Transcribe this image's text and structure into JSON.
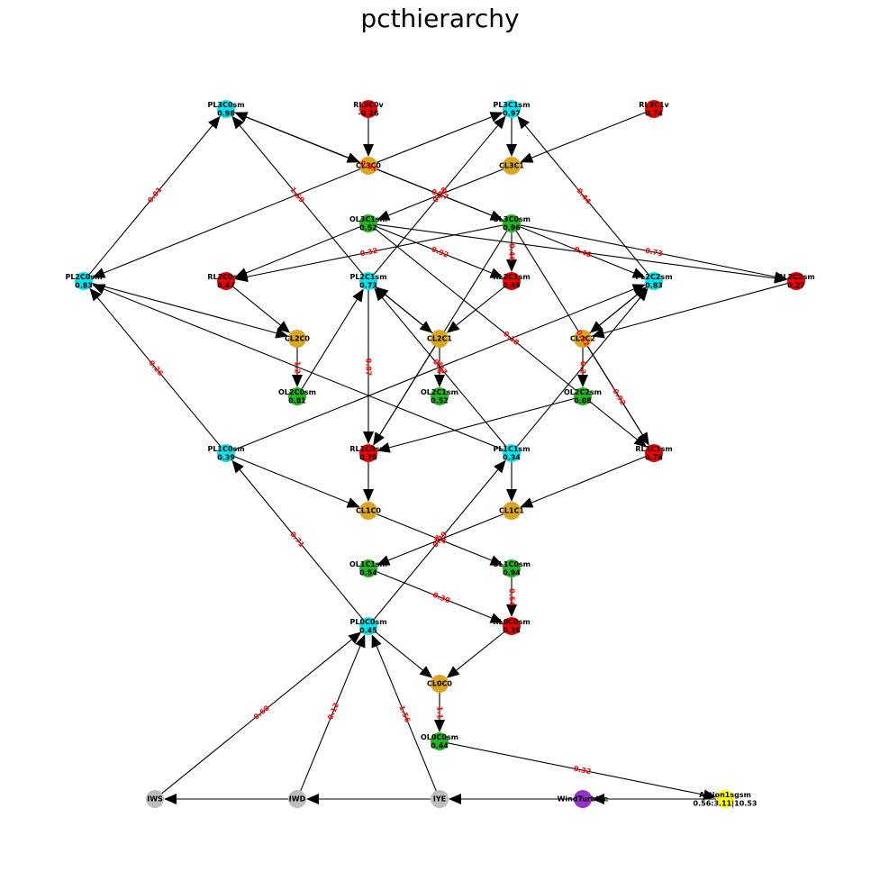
{
  "title": "pcthierarchy",
  "colors": {
    "cyan": "#00e5ee",
    "red": "#ee0000",
    "gold": "#daa520",
    "green": "#22b422",
    "gray": "#bdbdbd",
    "purple": "#9932cc",
    "yellow": "#ffff00",
    "edge": "#000000",
    "edge_label": "#ff0000"
  },
  "nodes": [
    {
      "id": "PL3C0sm",
      "lines": [
        "PL3C0sm",
        "0.98"
      ],
      "color": "cyan"
    },
    {
      "id": "RL3C0v",
      "lines": [
        "RL3C0v",
        "-0.26"
      ],
      "color": "red"
    },
    {
      "id": "PL3C1sm",
      "lines": [
        "PL3C1sm",
        "0.97"
      ],
      "color": "cyan"
    },
    {
      "id": "RL3C1v",
      "lines": [
        "RL3C1v",
        "0.74"
      ],
      "color": "red"
    },
    {
      "id": "CL3C0",
      "lines": [
        "CL3C0"
      ],
      "color": "gold"
    },
    {
      "id": "CL3C1",
      "lines": [
        "CL3C1"
      ],
      "color": "gold"
    },
    {
      "id": "OL3C1sm",
      "lines": [
        "OL3C1sm",
        "0.52"
      ],
      "color": "green"
    },
    {
      "id": "OL3C0sm",
      "lines": [
        "OL3C0sm",
        "0.96"
      ],
      "color": "green"
    },
    {
      "id": "PL2C0sm",
      "lines": [
        "PL2C0sm",
        "0.83"
      ],
      "color": "cyan"
    },
    {
      "id": "RL2C0sm",
      "lines": [
        "RL2C0sm",
        "0.47"
      ],
      "color": "red"
    },
    {
      "id": "PL2C1sm",
      "lines": [
        "PL2C1sm",
        "0.73"
      ],
      "color": "cyan"
    },
    {
      "id": "RL2C1sm",
      "lines": [
        "RL2C1sm",
        "0.49"
      ],
      "color": "red"
    },
    {
      "id": "PL2C2sm",
      "lines": [
        "PL2C2sm",
        "0.83"
      ],
      "color": "cyan"
    },
    {
      "id": "RL2C2sm",
      "lines": [
        "RL2C2sm",
        "0.27"
      ],
      "color": "red"
    },
    {
      "id": "CL2C0",
      "lines": [
        "CL2C0"
      ],
      "color": "gold"
    },
    {
      "id": "CL2C1",
      "lines": [
        "CL2C1"
      ],
      "color": "gold"
    },
    {
      "id": "CL2C2",
      "lines": [
        "CL2C2"
      ],
      "color": "gold"
    },
    {
      "id": "OL2C0sm",
      "lines": [
        "OL2C0sm",
        "0.81"
      ],
      "color": "green"
    },
    {
      "id": "OL2C1sm",
      "lines": [
        "OL2C1sm",
        "0.52"
      ],
      "color": "green"
    },
    {
      "id": "OL2C2sm",
      "lines": [
        "OL2C2sm",
        "0.08"
      ],
      "color": "green"
    },
    {
      "id": "PL1C0sm",
      "lines": [
        "PL1C0sm",
        "0.39"
      ],
      "color": "cyan"
    },
    {
      "id": "RL1C0sm",
      "lines": [
        "RL1C0sm",
        "0.70"
      ],
      "color": "red"
    },
    {
      "id": "PL1C1sm",
      "lines": [
        "PL1C1sm",
        "0.34"
      ],
      "color": "cyan"
    },
    {
      "id": "RL1C1sm",
      "lines": [
        "RL1C1sm",
        "0.78"
      ],
      "color": "red"
    },
    {
      "id": "CL1C0",
      "lines": [
        "CL1C0"
      ],
      "color": "gold"
    },
    {
      "id": "CL1C1",
      "lines": [
        "CL1C1"
      ],
      "color": "gold"
    },
    {
      "id": "OL1C1sm",
      "lines": [
        "OL1C1sm",
        "0.54"
      ],
      "color": "green"
    },
    {
      "id": "OL1C0sm",
      "lines": [
        "OL1C0sm",
        "0.94"
      ],
      "color": "green"
    },
    {
      "id": "PL0C0sm",
      "lines": [
        "PL0C0sm",
        "0.45"
      ],
      "color": "cyan"
    },
    {
      "id": "RL0C0sm",
      "lines": [
        "RL0C0sm",
        "0.38"
      ],
      "color": "red"
    },
    {
      "id": "CL0C0",
      "lines": [
        "CL0C0"
      ],
      "color": "gold"
    },
    {
      "id": "OL0C0sm",
      "lines": [
        "OL0C0sm",
        "0.44"
      ],
      "color": "green"
    },
    {
      "id": "IWS",
      "lines": [
        "IWS"
      ],
      "color": "gray"
    },
    {
      "id": "IWD",
      "lines": [
        "IWD"
      ],
      "color": "gray"
    },
    {
      "id": "IYE",
      "lines": [
        "IYE"
      ],
      "color": "gray"
    },
    {
      "id": "WindTurbine",
      "lines": [
        "WindTurbine"
      ],
      "color": "purple"
    },
    {
      "id": "Action1sgsm",
      "lines": [
        "Action1sgsm",
        "0.56:3.11|10.53"
      ],
      "color": "yellow"
    }
  ],
  "edges": [
    {
      "from": "RL3C0v",
      "to": "CL3C0",
      "label": ""
    },
    {
      "from": "PL3C0sm",
      "to": "CL3C0",
      "label": ""
    },
    {
      "from": "CL3C0",
      "to": "PL3C0sm",
      "label": ""
    },
    {
      "from": "PL3C1sm",
      "to": "CL3C1",
      "label": ""
    },
    {
      "from": "RL3C1v",
      "to": "CL3C1",
      "label": ""
    },
    {
      "from": "CL3C0",
      "to": "PL3C1sm",
      "label": ""
    },
    {
      "from": "CL3C0",
      "to": "OL3C0sm",
      "label": "0.17"
    },
    {
      "from": "CL3C1",
      "to": "OL3C1sm",
      "label": ""
    },
    {
      "from": "CL3C0",
      "to": "PL2C0sm",
      "label": ""
    },
    {
      "from": "OL3C0sm",
      "to": "PL3C0sm",
      "label": "0.51"
    },
    {
      "from": "OL3C0sm",
      "to": "RL2C0sm",
      "label": "0.32"
    },
    {
      "from": "OL3C1sm",
      "to": "RL2C0sm",
      "label": ""
    },
    {
      "from": "OL3C1sm",
      "to": "RL2C1sm",
      "label": "0.92"
    },
    {
      "from": "OL3C0sm",
      "to": "RL2C1sm",
      "label": "0.46"
    },
    {
      "from": "OL3C0sm",
      "to": "PL2C2sm",
      "label": "0.46"
    },
    {
      "from": "OL3C0sm",
      "to": "RL2C2sm",
      "label": "0.73"
    },
    {
      "from": "OL3C1sm",
      "to": "RL2C2sm",
      "label": ""
    },
    {
      "from": "OL3C0sm",
      "to": "RL1C0sm",
      "label": ""
    },
    {
      "from": "OL3C0sm",
      "to": "RL1C1sm",
      "label": "0.12"
    },
    {
      "from": "OL3C1sm",
      "to": "RL1C1sm",
      "label": "0.18"
    },
    {
      "from": "PL2C0sm",
      "to": "PL3C0sm",
      "label": "0.01"
    },
    {
      "from": "PL2C1sm",
      "to": "PL3C0sm",
      "label": "1.59"
    },
    {
      "from": "PL2C1sm",
      "to": "PL3C1sm",
      "label": "0.78"
    },
    {
      "from": "PL2C2sm",
      "to": "PL3C1sm",
      "label": "-0.44"
    },
    {
      "from": "RL2C0sm",
      "to": "CL2C0",
      "label": ""
    },
    {
      "from": "PL2C0sm",
      "to": "CL2C0",
      "label": ""
    },
    {
      "from": "PL2C1sm",
      "to": "CL2C1",
      "label": ""
    },
    {
      "from": "RL2C1sm",
      "to": "CL2C1",
      "label": ""
    },
    {
      "from": "CL2C1",
      "to": "PL2C1sm",
      "label": ""
    },
    {
      "from": "RL2C2sm",
      "to": "CL2C2",
      "label": ""
    },
    {
      "from": "PL2C2sm",
      "to": "CL2C2",
      "label": ""
    },
    {
      "from": "CL2C2",
      "to": "PL2C2sm",
      "label": ""
    },
    {
      "from": "CL2C0",
      "to": "OL2C0sm",
      "label": "1.2"
    },
    {
      "from": "CL2C1",
      "to": "OL2C1sm",
      "label": "1.5"
    },
    {
      "from": "CL2C2",
      "to": "OL2C2sm",
      "label": "0.2"
    },
    {
      "from": "PL2C1sm",
      "to": "RL1C0sm",
      "label": "0.87"
    },
    {
      "from": "CL2C1",
      "to": "RL1C0sm",
      "label": ""
    },
    {
      "from": "OL2C2sm",
      "to": "RL1C0sm",
      "label": ""
    },
    {
      "from": "OL2C0sm",
      "to": "PL2C1sm",
      "label": ""
    },
    {
      "from": "PL1C0sm",
      "to": "PL2C0sm",
      "label": "-0.26"
    },
    {
      "from": "PL1C1sm",
      "to": "PL2C0sm",
      "label": ""
    },
    {
      "from": "PL1C1sm",
      "to": "PL2C1sm",
      "label": "0.77"
    },
    {
      "from": "PL1C1sm",
      "to": "PL2C2sm",
      "label": ""
    },
    {
      "from": "PL1C0sm",
      "to": "PL2C2sm",
      "label": ""
    },
    {
      "from": "CL2C2",
      "to": "RL1C1sm",
      "label": "-0.92"
    },
    {
      "from": "RL1C0sm",
      "to": "CL1C0",
      "label": ""
    },
    {
      "from": "PL1C0sm",
      "to": "CL1C0",
      "label": ""
    },
    {
      "from": "PL1C1sm",
      "to": "CL1C1",
      "label": ""
    },
    {
      "from": "RL1C1sm",
      "to": "CL1C1",
      "label": ""
    },
    {
      "from": "CL1C0",
      "to": "OL1C0sm",
      "label": "1.4"
    },
    {
      "from": "CL1C1",
      "to": "OL1C1sm",
      "label": ""
    },
    {
      "from": "OL1C1sm",
      "to": "RL0C0sm",
      "label": "-0.30"
    },
    {
      "from": "OL1C0sm",
      "to": "RL0C0sm",
      "label": "0.54"
    },
    {
      "from": "PL0C0sm",
      "to": "PL1C0sm",
      "label": "0.71"
    },
    {
      "from": "PL0C0sm",
      "to": "PL1C1sm",
      "label": "0.79"
    },
    {
      "from": "PL0C0sm",
      "to": "CL0C0",
      "label": ""
    },
    {
      "from": "RL0C0sm",
      "to": "CL0C0",
      "label": ""
    },
    {
      "from": "CL0C0",
      "to": "OL0C0sm",
      "label": "1.1"
    },
    {
      "from": "OL0C0sm",
      "to": "Action1sgsm",
      "label": "0.32"
    },
    {
      "from": "IWS",
      "to": "PL0C0sm",
      "label": "0.60"
    },
    {
      "from": "IWD",
      "to": "PL0C0sm",
      "label": "-0.12"
    },
    {
      "from": "IYE",
      "to": "PL0C0sm",
      "label": "-1.56"
    },
    {
      "from": "IWD",
      "to": "IWS",
      "label": ""
    },
    {
      "from": "IYE",
      "to": "IWD",
      "label": ""
    },
    {
      "from": "WindTurbine",
      "to": "IYE",
      "label": ""
    },
    {
      "from": "Action1sgsm",
      "to": "WindTurbine",
      "label": ""
    }
  ]
}
